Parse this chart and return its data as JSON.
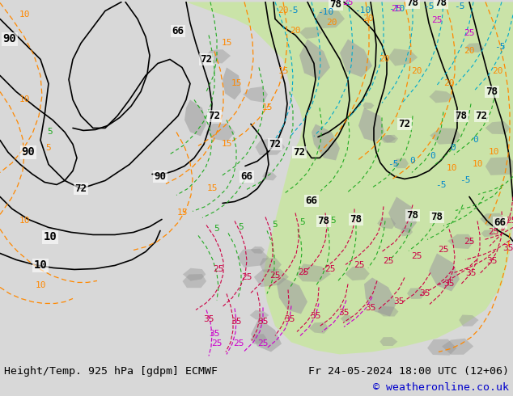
{
  "title_left": "Height/Temp. 925 hPa [gdpm] ECMWF",
  "title_right": "Fr 24-05-2024 18:00 UTC (12+06)",
  "copyright": "© weatheronline.co.uk",
  "bg_color": "#e8e8e8",
  "map_bg_color": "#f0f0f0",
  "footer_text_color": "#000000",
  "copyright_color": "#0000cc",
  "fig_width": 6.34,
  "fig_height": 4.9,
  "dpi": 100
}
